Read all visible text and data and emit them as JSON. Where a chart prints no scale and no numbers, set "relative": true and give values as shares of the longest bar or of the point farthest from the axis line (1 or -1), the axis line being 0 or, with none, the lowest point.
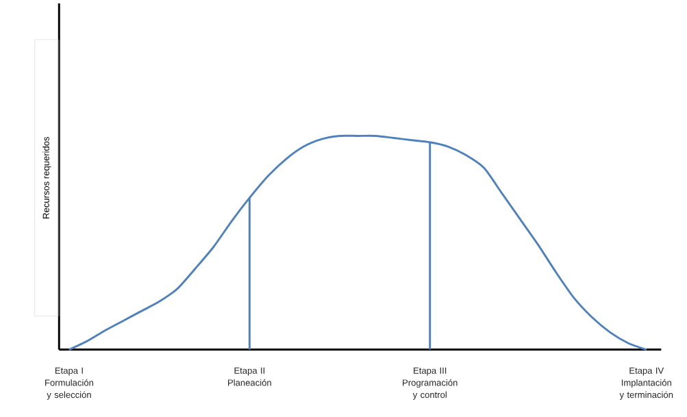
{
  "chart_data": {
    "type": "line",
    "relative": true,
    "ylabel": "Recursos requeridos",
    "marker": "none",
    "line_style": "solid",
    "categories": [
      "Etapa I Formulación y selección",
      null,
      null,
      null,
      null,
      null,
      null,
      null,
      null,
      null,
      "Etapa II Planeación",
      null,
      null,
      null,
      null,
      null,
      null,
      null,
      null,
      null,
      "Etapa III Programación y control",
      null,
      null,
      null,
      null,
      null,
      null,
      null,
      null,
      null,
      null,
      null,
      "Etapa IV Implantación y terminación"
    ],
    "series": [
      {
        "color": "#4f81bd",
        "values": [
          0,
          0.04,
          0.09,
          0.135,
          0.18,
          0.225,
          0.285,
          0.38,
          0.48,
          0.6,
          0.71,
          0.81,
          0.89,
          0.95,
          0.985,
          1,
          1,
          1,
          0.99,
          0.98,
          0.97,
          0.95,
          0.91,
          0.85,
          0.73,
          0.61,
          0.49,
          0.36,
          0.24,
          0.15,
          0.08,
          0.03,
          0
        ]
      },
      {
        "type": "bar",
        "color": "#4f81bd",
        "values": [
          null,
          null,
          null,
          null,
          null,
          null,
          null,
          null,
          null,
          null,
          0.71,
          null,
          null,
          null,
          null,
          null,
          null,
          null,
          null,
          null,
          0.97,
          null,
          null,
          null,
          null,
          null,
          null,
          null,
          null,
          null,
          null,
          null,
          null
        ]
      }
    ]
  }
}
